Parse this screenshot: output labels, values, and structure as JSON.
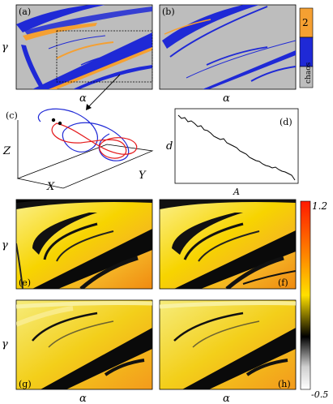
{
  "panels": {
    "a": {
      "label": "(a)",
      "xlabel": "α",
      "ylabel": "γ"
    },
    "b": {
      "label": "(b)",
      "xlabel": "α"
    },
    "c": {
      "label": "(c)",
      "xlabel": "X",
      "ylabel": "Y",
      "zlabel": "Z"
    },
    "d": {
      "label": "(d)",
      "xlabel": "A",
      "ylabel": "d"
    },
    "e": {
      "label": "(e)",
      "ylabel": "γ"
    },
    "f": {
      "label": "(f)"
    },
    "g": {
      "label": "(g)",
      "ylabel": "γ"
    },
    "h": {
      "label": "(h)"
    }
  },
  "bottom_xlabels": [
    "α",
    "α"
  ],
  "legend_top": {
    "entries": [
      {
        "label": "2",
        "color": "#f5a032"
      },
      {
        "label": "chaos",
        "color": "#1f29d6"
      }
    ]
  },
  "colorbar": {
    "max_label": "1.2",
    "min_label": "-0.5",
    "stops": [
      "#ff1a00",
      "#ff8a00",
      "#ffe000",
      "#000000",
      "#cfcfcf",
      "#ffffff"
    ]
  },
  "colors": {
    "gray_bg": "#bdbdbd",
    "blue": "#1f29d6",
    "orange": "#f5a032",
    "yellow_bg": "#f7d400",
    "orange_bg": "#f29a1c"
  }
}
